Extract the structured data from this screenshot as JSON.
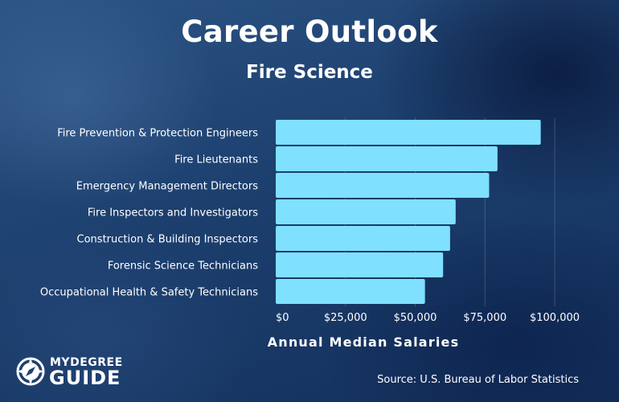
{
  "chart_data": {
    "type": "bar",
    "orientation": "horizontal",
    "title": "Career Outlook",
    "subtitle": "Fire Science",
    "xlabel": "Annual Median Salaries",
    "ylabel": "",
    "categories": [
      "Fire Prevention & Protection Engineers",
      "Fire Lieutenants",
      "Emergency Management Directors",
      "Fire Inspectors and Investigators",
      "Construction & Building Inspectors",
      "Forensic Science Technicians",
      "Occupational Health & Safety Technicians"
    ],
    "values": [
      95000,
      79500,
      76500,
      64500,
      62500,
      60000,
      53500
    ],
    "xlim": [
      0,
      100000
    ],
    "xticks": [
      0,
      25000,
      50000,
      75000,
      100000
    ],
    "xtick_labels": [
      "$0",
      "$25,000",
      "$50,000",
      "$75,000",
      "$100,000"
    ],
    "grid": true,
    "bar_color": "#7fe0ff",
    "source": "Source: U.S. Bureau of Labor Statistics"
  },
  "brand": {
    "logo_top": "MYDEGREE",
    "logo_bottom": "GUIDE"
  }
}
